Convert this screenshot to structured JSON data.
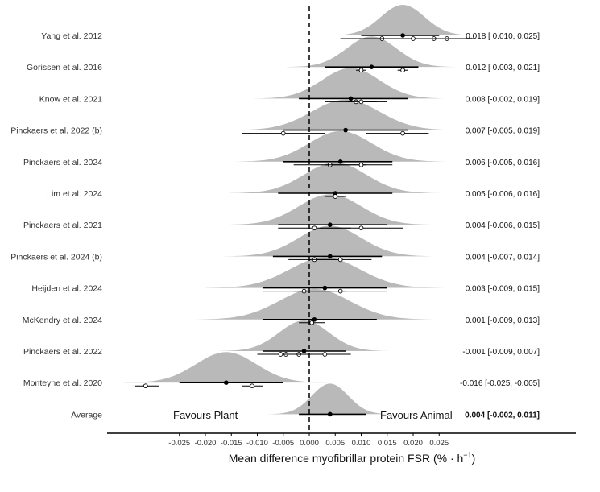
{
  "chart_data": {
    "type": "forest",
    "xlabel": "Mean difference myofibrillar protein FSR (% · h",
    "xlabel_sup": "−1",
    "xlabel_close": ")",
    "x_ticks": [
      -0.025,
      -0.02,
      -0.015,
      -0.01,
      -0.005,
      0.0,
      0.005,
      0.01,
      0.015,
      0.02,
      0.025
    ],
    "x_tick_labels": [
      "-0.025",
      "-0.020",
      "-0.015",
      "-0.010",
      "-0.005",
      "0.000",
      "0.005",
      "0.010",
      "0.015",
      "0.020",
      "0.025"
    ],
    "xlim": [
      -0.0385,
      0.0445
    ],
    "reference_line": 0,
    "left_annotation": "Favours Plant",
    "right_annotation": "Favours Animal",
    "studies": [
      {
        "name": "Yang et al. 2012",
        "estimate": 0.018,
        "ci_low": 0.01,
        "ci_high": 0.025,
        "ci_text": "0.018 [ 0.010,  0.025]",
        "spread": 0.0042,
        "subgroups": [
          {
            "mean": 0.014,
            "low": 0.006,
            "high": 0.022
          },
          {
            "mean": 0.024,
            "low": 0.016,
            "high": 0.032
          },
          {
            "mean": 0.0265,
            "low": 0.021,
            "high": 0.032
          },
          {
            "mean": 0.02,
            "low": 0.013,
            "high": 0.027
          }
        ]
      },
      {
        "name": "Gorissen et al. 2016",
        "estimate": 0.012,
        "ci_low": 0.003,
        "ci_high": 0.021,
        "ci_text": "0.012 [ 0.003,  0.021]",
        "spread": 0.0048,
        "subgroups": [
          {
            "mean": 0.01,
            "low": 0.009,
            "high": 0.011
          },
          {
            "mean": 0.018,
            "low": 0.017,
            "high": 0.019
          }
        ]
      },
      {
        "name": "Know et al. 2021",
        "estimate": 0.008,
        "ci_low": -0.002,
        "ci_high": 0.019,
        "ci_text": "0.008 [-0.002,  0.019]",
        "spread": 0.0055,
        "subgroups": [
          {
            "mean": 0.009,
            "low": 0.003,
            "high": 0.015
          },
          {
            "mean": 0.01,
            "low": 0.007,
            "high": 0.013
          }
        ]
      },
      {
        "name": "Pinckaers et al. 2022 (b)",
        "estimate": 0.007,
        "ci_low": -0.005,
        "ci_high": 0.019,
        "ci_text": "0.007 [-0.005,  0.019]",
        "spread": 0.0065,
        "subgroups": [
          {
            "mean": -0.005,
            "low": -0.013,
            "high": 0.003
          },
          {
            "mean": 0.018,
            "low": 0.011,
            "high": 0.023
          }
        ]
      },
      {
        "name": "Pinckaers et al. 2024",
        "estimate": 0.006,
        "ci_low": -0.005,
        "ci_high": 0.016,
        "ci_text": "0.006 [-0.005,  0.016]",
        "spread": 0.006,
        "subgroups": [
          {
            "mean": 0.004,
            "low": -0.003,
            "high": 0.011
          },
          {
            "mean": 0.01,
            "low": 0.003,
            "high": 0.016
          }
        ]
      },
      {
        "name": "Lim et al. 2024",
        "estimate": 0.005,
        "ci_low": -0.006,
        "ci_high": 0.016,
        "ci_text": "0.005 [-0.006,  0.016]",
        "spread": 0.006,
        "subgroups": [
          {
            "mean": 0.005,
            "low": 0.003,
            "high": 0.007
          }
        ]
      },
      {
        "name": "Pinckaers et al. 2021",
        "estimate": 0.004,
        "ci_low": -0.006,
        "ci_high": 0.015,
        "ci_text": "0.004 [-0.006,  0.015]",
        "spread": 0.006,
        "subgroups": [
          {
            "mean": 0.001,
            "low": -0.006,
            "high": 0.008
          },
          {
            "mean": 0.01,
            "low": 0.002,
            "high": 0.018
          }
        ]
      },
      {
        "name": "Pinckaers et al. 2024 (b)",
        "estimate": 0.004,
        "ci_low": -0.007,
        "ci_high": 0.014,
        "ci_text": "0.004 [-0.007,  0.014]",
        "spread": 0.006,
        "subgroups": [
          {
            "mean": 0.001,
            "low": -0.004,
            "high": 0.006
          },
          {
            "mean": 0.006,
            "low": 0.0,
            "high": 0.012
          }
        ]
      },
      {
        "name": "Heijden et al. 2024",
        "estimate": 0.003,
        "ci_low": -0.009,
        "ci_high": 0.015,
        "ci_text": "0.003 [-0.009,  0.015]",
        "spread": 0.0068,
        "subgroups": [
          {
            "mean": -0.001,
            "low": -0.009,
            "high": 0.007
          },
          {
            "mean": 0.006,
            "low": -0.003,
            "high": 0.015
          }
        ]
      },
      {
        "name": "McKendry et al. 2024",
        "estimate": 0.001,
        "ci_low": -0.009,
        "ci_high": 0.013,
        "ci_text": "0.001 [-0.009,  0.013]",
        "spread": 0.0068,
        "subgroups": [
          {
            "mean": 0.0005,
            "low": -0.002,
            "high": 0.003
          }
        ]
      },
      {
        "name": "Pinckaers et al. 2022",
        "estimate": -0.001,
        "ci_low": -0.009,
        "ci_high": 0.007,
        "ci_text": "-0.001 [-0.009,  0.007]",
        "spread": 0.0048,
        "subgroups": [
          {
            "mean": -0.0045,
            "low": -0.009,
            "high": 0.0
          },
          {
            "mean": -0.002,
            "low": -0.006,
            "high": 0.002
          },
          {
            "mean": 0.003,
            "low": -0.002,
            "high": 0.008
          },
          {
            "mean": -0.0055,
            "low": -0.01,
            "high": -0.001
          }
        ]
      },
      {
        "name": "Monteyne et al. 2020",
        "estimate": -0.016,
        "ci_low": -0.025,
        "ci_high": -0.005,
        "ci_text": "-0.016 [-0.025, -0.005]",
        "spread": 0.0058,
        "subgroups": [
          {
            "mean": -0.0315,
            "low": -0.0335,
            "high": -0.029
          },
          {
            "mean": -0.011,
            "low": -0.013,
            "high": -0.009
          }
        ]
      }
    ],
    "average": {
      "name": "Average",
      "estimate": 0.004,
      "ci_low": -0.002,
      "ci_high": 0.011,
      "ci_text": "0.004 [-0.002,  0.011]",
      "spread": 0.0035
    }
  }
}
